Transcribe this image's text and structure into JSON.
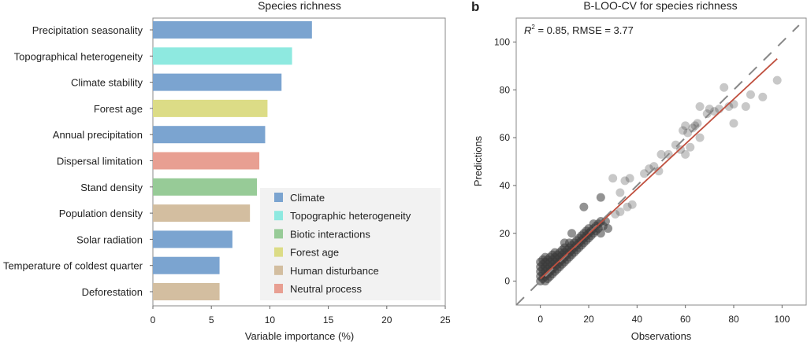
{
  "chart_data": [
    {
      "type": "bar",
      "orientation": "horizontal",
      "title": "Species richness",
      "xlabel": "Variable importance (%)",
      "ylabel": "",
      "xlim": [
        0,
        25
      ],
      "xticks": [
        0,
        5,
        10,
        15,
        20,
        25
      ],
      "categories": [
        "Precipitation seasonality",
        "Topographical heterogeneity",
        "Climate stability",
        "Forest age",
        "Annual precipitation",
        "Dispersal limitation",
        "Stand density",
        "Population density",
        "Solar radiation",
        "Temperature of coldest quarter",
        "Deforestation"
      ],
      "values": [
        13.6,
        11.9,
        11.0,
        9.8,
        9.6,
        9.1,
        8.9,
        8.3,
        6.8,
        5.7,
        5.7
      ],
      "groups": [
        "Climate",
        "Topographic heterogeneity",
        "Climate",
        "Forest age",
        "Climate",
        "Neutral process",
        "Biotic interactions",
        "Human disturbance",
        "Climate",
        "Climate",
        "Human disturbance"
      ],
      "legend": {
        "placement": "bottom-right",
        "entries": [
          {
            "name": "Climate",
            "color": "#7ba4d0"
          },
          {
            "name": "Topographic heterogeneity",
            "color": "#8ee9e0"
          },
          {
            "name": "Biotic interactions",
            "color": "#97cb97"
          },
          {
            "name": "Forest age",
            "color": "#dcdc86"
          },
          {
            "name": "Human disturbance",
            "color": "#d3bea0"
          },
          {
            "name": "Neutral process",
            "color": "#e89f92"
          }
        ]
      },
      "grid": false
    },
    {
      "type": "scatter",
      "panel_label": "b",
      "title": "B-LOO-CV for species richness",
      "xlabel": "Observations",
      "ylabel": "Predictions",
      "xlim": [
        -10,
        110
      ],
      "ylim": [
        -10,
        110
      ],
      "xticks": [
        0,
        20,
        40,
        60,
        80,
        100
      ],
      "yticks": [
        0,
        20,
        40,
        60,
        80,
        100
      ],
      "annotation": {
        "r2_label": "R",
        "r2_sup": "2",
        "text": " = 0.85, RMSE = 3.77"
      },
      "fit_line": {
        "color": "#c0503f",
        "x": [
          0,
          98
        ],
        "y": [
          1,
          93
        ]
      },
      "identity_line": {
        "style": "dashed",
        "color": "#888888",
        "x": [
          -10,
          107
        ],
        "y": [
          -10,
          107
        ]
      },
      "point_color": "#3a3a3a",
      "grid": false,
      "points": [
        [
          0,
          0
        ],
        [
          0,
          2
        ],
        [
          0,
          4
        ],
        [
          0,
          6
        ],
        [
          0,
          8
        ],
        [
          1,
          1
        ],
        [
          1,
          3
        ],
        [
          1,
          5
        ],
        [
          1,
          7
        ],
        [
          1,
          9
        ],
        [
          2,
          0
        ],
        [
          2,
          2
        ],
        [
          2,
          4
        ],
        [
          2,
          6
        ],
        [
          2,
          8
        ],
        [
          2,
          10
        ],
        [
          3,
          1
        ],
        [
          3,
          3
        ],
        [
          3,
          5
        ],
        [
          3,
          7
        ],
        [
          3,
          9
        ],
        [
          4,
          2
        ],
        [
          4,
          4
        ],
        [
          4,
          6
        ],
        [
          4,
          8
        ],
        [
          4,
          10
        ],
        [
          5,
          3
        ],
        [
          5,
          5
        ],
        [
          5,
          7
        ],
        [
          5,
          9
        ],
        [
          5,
          11
        ],
        [
          6,
          4
        ],
        [
          6,
          6
        ],
        [
          6,
          8
        ],
        [
          6,
          10
        ],
        [
          6,
          12
        ],
        [
          7,
          5
        ],
        [
          7,
          7
        ],
        [
          7,
          9
        ],
        [
          7,
          11
        ],
        [
          8,
          6
        ],
        [
          8,
          8
        ],
        [
          8,
          10
        ],
        [
          8,
          12
        ],
        [
          9,
          7
        ],
        [
          9,
          9
        ],
        [
          9,
          11
        ],
        [
          9,
          13
        ],
        [
          10,
          8
        ],
        [
          10,
          10
        ],
        [
          10,
          12
        ],
        [
          10,
          14
        ],
        [
          11,
          9
        ],
        [
          11,
          11
        ],
        [
          11,
          13
        ],
        [
          12,
          10
        ],
        [
          12,
          12
        ],
        [
          12,
          14
        ],
        [
          12,
          16
        ],
        [
          13,
          11
        ],
        [
          13,
          13
        ],
        [
          13,
          15
        ],
        [
          14,
          12
        ],
        [
          14,
          14
        ],
        [
          14,
          16
        ],
        [
          15,
          13
        ],
        [
          15,
          15
        ],
        [
          15,
          17
        ],
        [
          16,
          14
        ],
        [
          16,
          16
        ],
        [
          16,
          18
        ],
        [
          17,
          15
        ],
        [
          17,
          17
        ],
        [
          17,
          19
        ],
        [
          18,
          16
        ],
        [
          18,
          18
        ],
        [
          18,
          20
        ],
        [
          19,
          17
        ],
        [
          19,
          19
        ],
        [
          19,
          21
        ],
        [
          20,
          18
        ],
        [
          20,
          20
        ],
        [
          20,
          22
        ],
        [
          21,
          19
        ],
        [
          21,
          21
        ],
        [
          22,
          20
        ],
        [
          22,
          22
        ],
        [
          22,
          24
        ],
        [
          23,
          21
        ],
        [
          23,
          23
        ],
        [
          24,
          22
        ],
        [
          24,
          24
        ],
        [
          25,
          20
        ],
        [
          25,
          25
        ],
        [
          26,
          23
        ],
        [
          27,
          25
        ],
        [
          28,
          22
        ],
        [
          13,
          20
        ],
        [
          10,
          16
        ],
        [
          18,
          31
        ],
        [
          25,
          35
        ],
        [
          30,
          43
        ],
        [
          33,
          37
        ],
        [
          35,
          42
        ],
        [
          37,
          43
        ],
        [
          31,
          28
        ],
        [
          33,
          29
        ],
        [
          36,
          31
        ],
        [
          38,
          32
        ],
        [
          43,
          45
        ],
        [
          45,
          47
        ],
        [
          47,
          48
        ],
        [
          49,
          46
        ],
        [
          50,
          53
        ],
        [
          53,
          53
        ],
        [
          56,
          57
        ],
        [
          58,
          55
        ],
        [
          60,
          53
        ],
        [
          62,
          56
        ],
        [
          59,
          63
        ],
        [
          60,
          65
        ],
        [
          61,
          62
        ],
        [
          64,
          65
        ],
        [
          65,
          66
        ],
        [
          66,
          60
        ],
        [
          63,
          64
        ],
        [
          66,
          73
        ],
        [
          69,
          70
        ],
        [
          70,
          72
        ],
        [
          72,
          71
        ],
        [
          74,
          72
        ],
        [
          76,
          81
        ],
        [
          78,
          73
        ],
        [
          80,
          66
        ],
        [
          80,
          74
        ],
        [
          85,
          73
        ],
        [
          87,
          78
        ],
        [
          92,
          77
        ],
        [
          98,
          84
        ]
      ]
    }
  ]
}
